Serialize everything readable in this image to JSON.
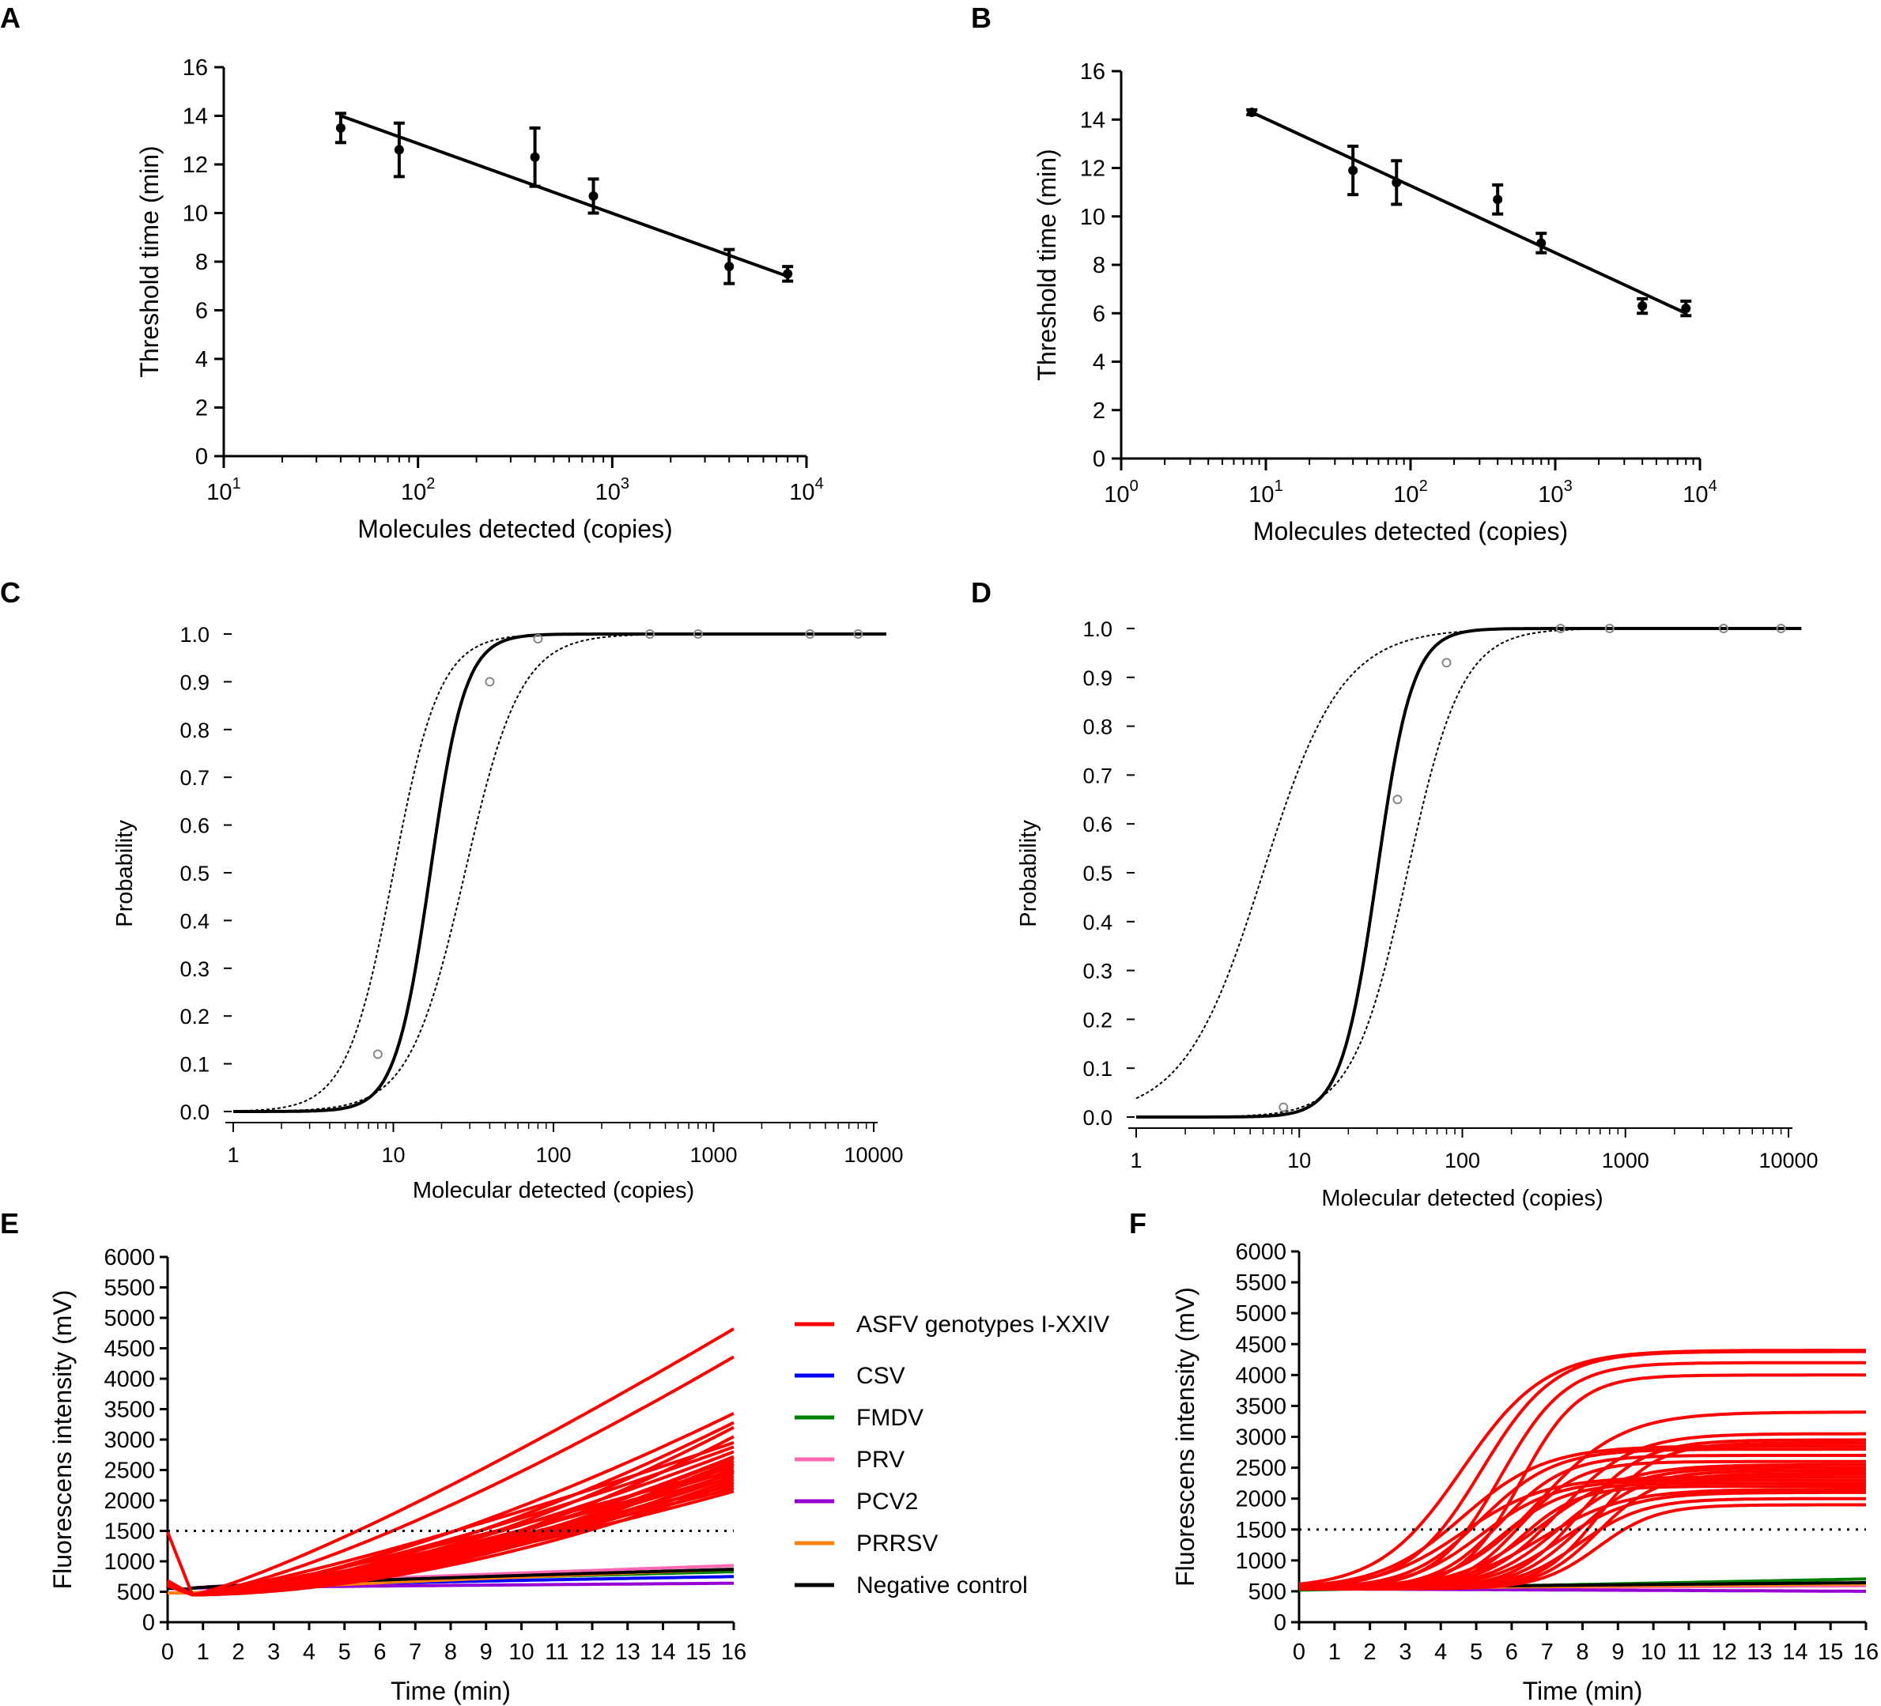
{
  "chart_data": [
    {
      "id": "A",
      "type": "scatter",
      "panel_label": "A",
      "xlabel": "Molecules detected (copies)",
      "ylabel": "Threshold time (min)",
      "xscale": "log",
      "xlim": [
        10,
        10000
      ],
      "ylim": [
        0,
        16
      ],
      "xticks": [
        {
          "value": 10,
          "base": "10",
          "exp": "1"
        },
        {
          "value": 100,
          "base": "10",
          "exp": "2"
        },
        {
          "value": 1000,
          "base": "10",
          "exp": "3"
        },
        {
          "value": 10000,
          "base": "10",
          "exp": "4"
        }
      ],
      "yticks": [
        "0",
        "2",
        "4",
        "6",
        "8",
        "10",
        "12",
        "14",
        "16"
      ],
      "points": [
        {
          "x": 40,
          "y": 13.5,
          "err": 0.6
        },
        {
          "x": 80,
          "y": 12.6,
          "err": 1.1
        },
        {
          "x": 400,
          "y": 12.3,
          "err": 1.2
        },
        {
          "x": 800,
          "y": 10.7,
          "err": 0.7
        },
        {
          "x": 4000,
          "y": 7.8,
          "err": 0.7
        },
        {
          "x": 8000,
          "y": 7.5,
          "err": 0.3
        }
      ],
      "fit": [
        {
          "x": 40,
          "y": 14.0
        },
        {
          "x": 8000,
          "y": 7.4
        }
      ]
    },
    {
      "id": "B",
      "type": "scatter",
      "panel_label": "B",
      "xlabel": "Molecules detected (copies)",
      "ylabel": "Threshold time (min)",
      "xscale": "log",
      "xlim": [
        1,
        10000
      ],
      "ylim": [
        0,
        16
      ],
      "xticks": [
        {
          "value": 1,
          "base": "10",
          "exp": "0"
        },
        {
          "value": 10,
          "base": "10",
          "exp": "1"
        },
        {
          "value": 100,
          "base": "10",
          "exp": "2"
        },
        {
          "value": 1000,
          "base": "10",
          "exp": "3"
        },
        {
          "value": 10000,
          "base": "10",
          "exp": "4"
        }
      ],
      "yticks": [
        "0",
        "2",
        "4",
        "6",
        "8",
        "10",
        "12",
        "14",
        "16"
      ],
      "points": [
        {
          "x": 8,
          "y": 14.3,
          "err": 0.1
        },
        {
          "x": 40,
          "y": 11.9,
          "err": 1.0
        },
        {
          "x": 80,
          "y": 11.4,
          "err": 0.9
        },
        {
          "x": 400,
          "y": 10.7,
          "err": 0.6
        },
        {
          "x": 800,
          "y": 8.9,
          "err": 0.4
        },
        {
          "x": 4000,
          "y": 6.3,
          "err": 0.3
        },
        {
          "x": 8000,
          "y": 6.2,
          "err": 0.3
        }
      ],
      "fit": [
        {
          "x": 8,
          "y": 14.3
        },
        {
          "x": 8000,
          "y": 6.0
        }
      ]
    },
    {
      "id": "C",
      "type": "line",
      "panel_label": "C",
      "xlabel": "Molecular detected (copies)",
      "ylabel": "Probability",
      "xscale": "log",
      "xlim": [
        1,
        10000
      ],
      "ylim": [
        0,
        1
      ],
      "xticks": [
        "1",
        "10",
        "100",
        "1000",
        "10000"
      ],
      "yticks": [
        "0.0",
        "0.1",
        "0.2",
        "0.3",
        "0.4",
        "0.5",
        "0.6",
        "0.7",
        "0.8",
        "0.9",
        "1.0"
      ],
      "fit_curve": {
        "ec50": 17,
        "slope": 4.0,
        "xmax": 12000
      },
      "ci_lower": {
        "ec50": 28,
        "slope": 2.5,
        "xmax": 12000
      },
      "ci_upper": {
        "ec50": 10,
        "slope": 3.0,
        "xmax": 12000
      },
      "observed": [
        {
          "x": 8,
          "y": 0.12
        },
        {
          "x": 40,
          "y": 0.9
        },
        {
          "x": 80,
          "y": 0.99
        },
        {
          "x": 400,
          "y": 1.0
        },
        {
          "x": 800,
          "y": 1.0
        },
        {
          "x": 4000,
          "y": 1.0
        },
        {
          "x": 8000,
          "y": 1.0
        }
      ]
    },
    {
      "id": "D",
      "type": "line",
      "panel_label": "D",
      "xlabel": "Molecular detected (copies)",
      "ylabel": "Probability",
      "xscale": "log",
      "xlim": [
        1,
        10000
      ],
      "ylim": [
        0,
        1
      ],
      "xticks": [
        "1",
        "10",
        "100",
        "1000",
        "10000"
      ],
      "yticks": [
        "0.0",
        "0.1",
        "0.2",
        "0.3",
        "0.4",
        "0.5",
        "0.6",
        "0.7",
        "0.8",
        "0.9",
        "1.0"
      ],
      "fit_curve": {
        "ec50": 30,
        "slope": 4.0,
        "xmax": 12000
      },
      "ci_lower": {
        "ec50": 46,
        "slope": 2.6,
        "xmax": 12000
      },
      "ci_upper": {
        "ec50": 6,
        "slope": 1.8,
        "xmax": 12000
      },
      "observed": [
        {
          "x": 8,
          "y": 0.02
        },
        {
          "x": 40,
          "y": 0.65
        },
        {
          "x": 80,
          "y": 0.93
        },
        {
          "x": 400,
          "y": 1.0
        },
        {
          "x": 800,
          "y": 1.0
        },
        {
          "x": 4000,
          "y": 1.0
        },
        {
          "x": 9000,
          "y": 1.0
        }
      ]
    },
    {
      "id": "E",
      "type": "line",
      "panel_label": "E",
      "xlabel": "Time (min)",
      "ylabel": "Fluorescens intensity (mV)",
      "xlim": [
        0,
        16
      ],
      "ylim": [
        0,
        6000
      ],
      "xticks": [
        "0",
        "1",
        "2",
        "3",
        "4",
        "5",
        "6",
        "7",
        "8",
        "9",
        "10",
        "11",
        "12",
        "13",
        "14",
        "15",
        "16"
      ],
      "yticks": [
        "0",
        "500",
        "1000",
        "1500",
        "2000",
        "2500",
        "3000",
        "3500",
        "4000",
        "4500",
        "5000",
        "5500",
        "6000"
      ],
      "threshold": 1500,
      "asfv_end_values": [
        4820,
        4360,
        3430,
        3280,
        3200,
        3050,
        2950,
        2880,
        2800,
        2720,
        2650,
        2600,
        2550,
        2500,
        2450,
        2400,
        2350,
        2300,
        2250,
        2200,
        2150,
        2700,
        2600,
        2480
      ],
      "series": [
        {
          "name": "CSV",
          "color": "#0000ff",
          "start": 560,
          "end": 750
        },
        {
          "name": "FMDV",
          "color": "#008000",
          "start": 560,
          "end": 830
        },
        {
          "name": "PRV",
          "color": "#ff69b4",
          "start": 560,
          "end": 930
        },
        {
          "name": "PCV2",
          "color": "#9400d3",
          "start": 560,
          "end": 640
        },
        {
          "name": "PRRSV",
          "color": "#ff7f0e",
          "start": 480,
          "end": 870
        },
        {
          "name": "Negative control",
          "color": "#000000",
          "start": 560,
          "end": 870
        }
      ]
    },
    {
      "id": "F",
      "type": "line",
      "panel_label": "F",
      "xlabel": "Time (min)",
      "ylabel": "Fluorescens intensity (mV)",
      "xlim": [
        0,
        16
      ],
      "ylim": [
        0,
        6000
      ],
      "xticks": [
        "0",
        "1",
        "2",
        "3",
        "4",
        "5",
        "6",
        "7",
        "8",
        "9",
        "10",
        "11",
        "12",
        "13",
        "14",
        "15",
        "16"
      ],
      "yticks": [
        "0",
        "500",
        "1000",
        "1500",
        "2000",
        "2500",
        "3000",
        "3500",
        "4000",
        "4500",
        "5000",
        "5500",
        "6000"
      ],
      "threshold": 1500,
      "asfv_plateaus": [
        4400,
        4380,
        4200,
        4000,
        3400,
        3050,
        2950,
        2900,
        2850,
        2800,
        2700,
        2600,
        2550,
        2500,
        2450,
        2400,
        2350,
        2300,
        2250,
        2200,
        2150,
        2100,
        2000,
        1900
      ],
      "series": [
        {
          "name": "CSV",
          "color": "#0000ff",
          "start": 560,
          "end": 600
        },
        {
          "name": "FMDV",
          "color": "#008000",
          "start": 520,
          "end": 700
        },
        {
          "name": "PRV",
          "color": "#ff69b4",
          "start": 540,
          "end": 590
        },
        {
          "name": "PCV2",
          "color": "#9400d3",
          "start": 540,
          "end": 500
        },
        {
          "name": "PRRSV",
          "color": "#ff7f0e",
          "start": 540,
          "end": 620
        },
        {
          "name": "Negative control",
          "color": "#000000",
          "start": 560,
          "end": 640
        }
      ]
    }
  ],
  "legend": {
    "items": [
      {
        "label": "ASFV genotypes I-XXIV",
        "color": "#ff0000"
      },
      {
        "label": "CSV",
        "color": "#0000ff"
      },
      {
        "label": "FMDV",
        "color": "#008000"
      },
      {
        "label": "PRV",
        "color": "#ff69b4"
      },
      {
        "label": "PCV2",
        "color": "#9400d3"
      },
      {
        "label": "PRRSV",
        "color": "#ff7f0e"
      },
      {
        "label": "Negative control",
        "color": "#000000"
      }
    ]
  }
}
